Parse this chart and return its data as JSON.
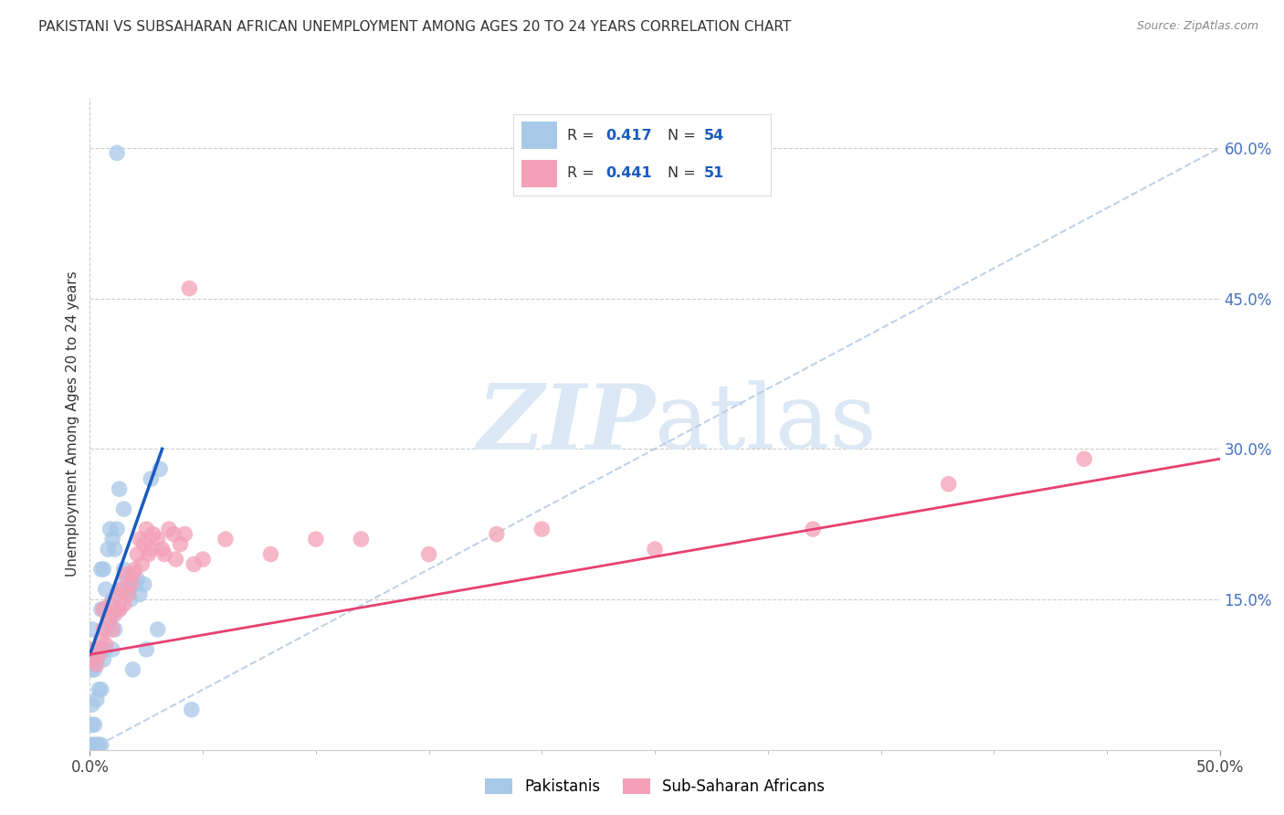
{
  "title": "PAKISTANI VS SUBSAHARAN AFRICAN UNEMPLOYMENT AMONG AGES 20 TO 24 YEARS CORRELATION CHART",
  "source": "Source: ZipAtlas.com",
  "ylabel": "Unemployment Among Ages 20 to 24 years",
  "xlim": [
    0.0,
    0.5
  ],
  "ylim": [
    -0.02,
    0.65
  ],
  "plot_ylim": [
    0.0,
    0.65
  ],
  "pakistani_R": 0.417,
  "pakistani_N": 54,
  "subsaharan_R": 0.441,
  "subsaharan_N": 51,
  "pakistani_color": "#a8c8e8",
  "subsaharan_color": "#f4a0b8",
  "pakistani_line_color": "#1a5bbf",
  "subsaharan_line_color": "#e84070",
  "ref_line_color": "#b8cce4",
  "background_color": "#ffffff",
  "watermark_zip": "ZIP",
  "watermark_atlas": "atlas",
  "watermark_color": "#dce8f5",
  "legend_label1": "Pakistanis",
  "legend_label2": "Sub-Saharan Africans",
  "yticks_right": [
    0.15,
    0.3,
    0.45,
    0.6
  ],
  "yticklabels_right": [
    "15.0%",
    "30.0%",
    "45.0%",
    "60.0%"
  ],
  "pak_x": [
    0.012,
    0.001,
    0.001,
    0.001,
    0.001,
    0.001,
    0.001,
    0.002,
    0.002,
    0.002,
    0.003,
    0.003,
    0.003,
    0.004,
    0.004,
    0.004,
    0.005,
    0.005,
    0.005,
    0.005,
    0.005,
    0.006,
    0.006,
    0.006,
    0.007,
    0.007,
    0.008,
    0.008,
    0.009,
    0.009,
    0.01,
    0.01,
    0.01,
    0.011,
    0.011,
    0.012,
    0.013,
    0.013,
    0.014,
    0.015,
    0.015,
    0.016,
    0.017,
    0.018,
    0.019,
    0.02,
    0.021,
    0.022,
    0.024,
    0.025,
    0.027,
    0.03,
    0.031,
    0.045
  ],
  "pak_y": [
    0.595,
    0.005,
    0.025,
    0.045,
    0.08,
    0.1,
    0.12,
    0.005,
    0.025,
    0.08,
    0.005,
    0.05,
    0.09,
    0.005,
    0.06,
    0.1,
    0.005,
    0.06,
    0.1,
    0.14,
    0.18,
    0.09,
    0.14,
    0.18,
    0.1,
    0.16,
    0.12,
    0.2,
    0.13,
    0.22,
    0.1,
    0.15,
    0.21,
    0.12,
    0.2,
    0.22,
    0.14,
    0.26,
    0.16,
    0.18,
    0.24,
    0.17,
    0.16,
    0.15,
    0.08,
    0.165,
    0.17,
    0.155,
    0.165,
    0.1,
    0.27,
    0.12,
    0.28,
    0.04
  ],
  "sub_x": [
    0.001,
    0.002,
    0.003,
    0.004,
    0.005,
    0.006,
    0.006,
    0.007,
    0.008,
    0.009,
    0.01,
    0.011,
    0.012,
    0.013,
    0.014,
    0.015,
    0.016,
    0.017,
    0.018,
    0.019,
    0.02,
    0.021,
    0.022,
    0.023,
    0.024,
    0.025,
    0.026,
    0.027,
    0.028,
    0.03,
    0.032,
    0.033,
    0.035,
    0.037,
    0.038,
    0.04,
    0.042,
    0.044,
    0.046,
    0.05,
    0.06,
    0.08,
    0.1,
    0.12,
    0.15,
    0.18,
    0.2,
    0.25,
    0.32,
    0.38,
    0.44
  ],
  "sub_y": [
    0.09,
    0.1,
    0.085,
    0.095,
    0.11,
    0.12,
    0.14,
    0.105,
    0.13,
    0.145,
    0.12,
    0.135,
    0.155,
    0.14,
    0.16,
    0.145,
    0.175,
    0.155,
    0.165,
    0.175,
    0.18,
    0.195,
    0.21,
    0.185,
    0.205,
    0.22,
    0.195,
    0.2,
    0.215,
    0.21,
    0.2,
    0.195,
    0.22,
    0.215,
    0.19,
    0.205,
    0.215,
    0.46,
    0.185,
    0.19,
    0.21,
    0.195,
    0.21,
    0.21,
    0.195,
    0.215,
    0.22,
    0.2,
    0.22,
    0.265,
    0.29
  ],
  "pak_line_x": [
    0.0,
    0.032
  ],
  "pak_line_y": [
    0.095,
    0.3
  ],
  "sub_line_x": [
    0.0,
    0.5
  ],
  "sub_line_y": [
    0.095,
    0.29
  ],
  "ref_line_x": [
    0.0,
    0.5
  ],
  "ref_line_y": [
    0.0,
    0.6
  ]
}
